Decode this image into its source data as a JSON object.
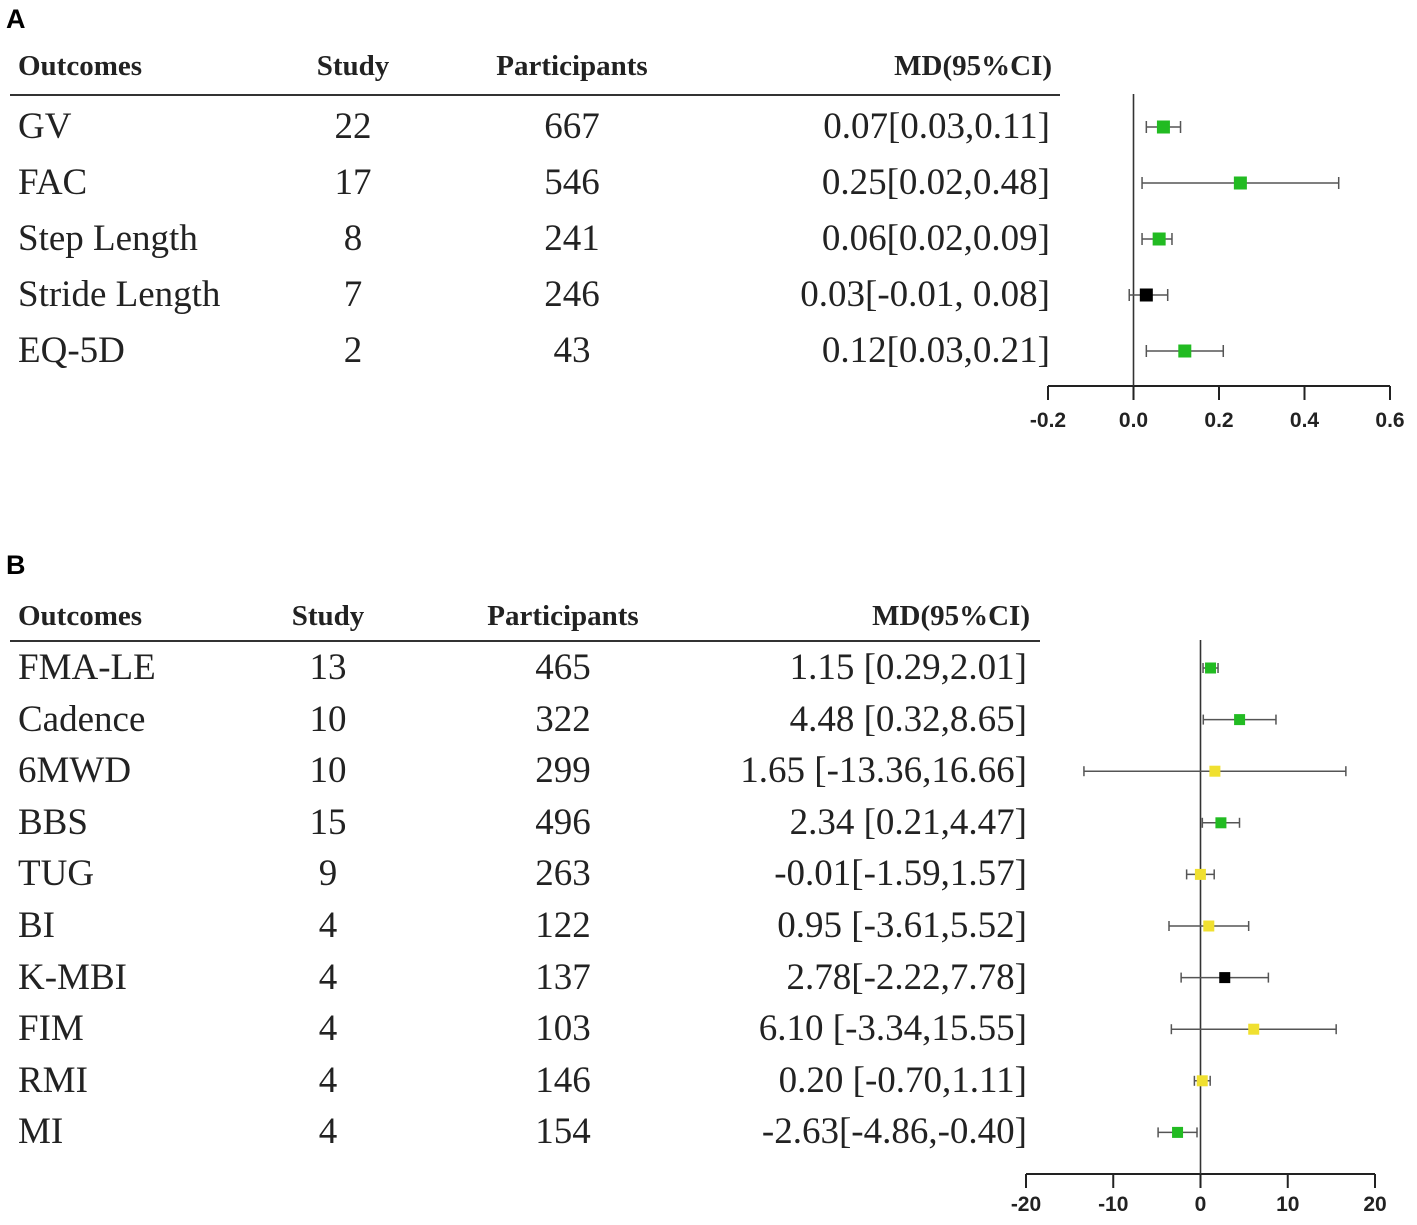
{
  "chart_data": [
    {
      "type": "forest",
      "panel": "A",
      "columns": [
        "Outcomes",
        "Study",
        "Participants",
        "MD(95%CI)"
      ],
      "rows": [
        {
          "outcome": "GV",
          "study": "22",
          "participants": "667",
          "ci_text": "0.07[0.03,0.11]",
          "md": 0.07,
          "lo": 0.03,
          "hi": 0.11,
          "color": "#22bb22"
        },
        {
          "outcome": "FAC",
          "study": "17",
          "participants": "546",
          "ci_text": "0.25[0.02,0.48]",
          "md": 0.25,
          "lo": 0.02,
          "hi": 0.48,
          "color": "#22bb22"
        },
        {
          "outcome": "Step Length",
          "study": "8",
          "participants": "241",
          "ci_text": "0.06[0.02,0.09]",
          "md": 0.06,
          "lo": 0.02,
          "hi": 0.09,
          "color": "#22bb22"
        },
        {
          "outcome": "Stride Length",
          "study": "7",
          "participants": "246",
          "ci_text": "0.03[-0.01, 0.08]",
          "md": 0.03,
          "lo": -0.01,
          "hi": 0.08,
          "color": "#000000"
        },
        {
          "outcome": "EQ-5D",
          "study": "2",
          "participants": "43",
          "ci_text": "0.12[0.03,0.21]",
          "md": 0.12,
          "lo": 0.03,
          "hi": 0.21,
          "color": "#22bb22"
        }
      ],
      "xlim": [
        -0.2,
        0.6
      ],
      "ticks": [
        -0.2,
        0.0,
        0.2,
        0.4,
        0.6
      ],
      "tick_labels": [
        "-0.2",
        "0.0",
        "0.2",
        "0.4",
        "0.6"
      ],
      "reference_line": 0
    },
    {
      "type": "forest",
      "panel": "B",
      "columns": [
        "Outcomes",
        "Study",
        "Participants",
        "MD(95%CI)"
      ],
      "rows": [
        {
          "outcome": "FMA-LE",
          "study": "13",
          "participants": "465",
          "ci_text": "1.15 [0.29,2.01]",
          "md": 1.15,
          "lo": 0.29,
          "hi": 2.01,
          "color": "#22bb22"
        },
        {
          "outcome": "Cadence",
          "study": "10",
          "participants": "322",
          "ci_text": "4.48 [0.32,8.65]",
          "md": 4.48,
          "lo": 0.32,
          "hi": 8.65,
          "color": "#22bb22"
        },
        {
          "outcome": "6MWD",
          "study": "10",
          "participants": "299",
          "ci_text": "1.65 [-13.36,16.66]",
          "md": 1.65,
          "lo": -13.36,
          "hi": 16.66,
          "color": "#f0e030"
        },
        {
          "outcome": "BBS",
          "study": "15",
          "participants": "496",
          "ci_text": "2.34 [0.21,4.47]",
          "md": 2.34,
          "lo": 0.21,
          "hi": 4.47,
          "color": "#22bb22"
        },
        {
          "outcome": "TUG",
          "study": "9",
          "participants": "263",
          "ci_text": "-0.01[-1.59,1.57]",
          "md": -0.01,
          "lo": -1.59,
          "hi": 1.57,
          "color": "#f0e030"
        },
        {
          "outcome": "BI",
          "study": "4",
          "participants": "122",
          "ci_text": "0.95 [-3.61,5.52]",
          "md": 0.95,
          "lo": -3.61,
          "hi": 5.52,
          "color": "#f0e030"
        },
        {
          "outcome": "K-MBI",
          "study": "4",
          "participants": "137",
          "ci_text": "2.78[-2.22,7.78]",
          "md": 2.78,
          "lo": -2.22,
          "hi": 7.78,
          "color": "#000000"
        },
        {
          "outcome": "FIM",
          "study": "4",
          "participants": "103",
          "ci_text": "6.10 [-3.34,15.55]",
          "md": 6.1,
          "lo": -3.34,
          "hi": 15.55,
          "color": "#f0e030"
        },
        {
          "outcome": "RMI",
          "study": "4",
          "participants": "146",
          "ci_text": "0.20 [-0.70,1.11]",
          "md": 0.2,
          "lo": -0.7,
          "hi": 1.11,
          "color": "#f0e030"
        },
        {
          "outcome": "MI",
          "study": "4",
          "participants": "154",
          "ci_text": "-2.63[-4.86,-0.40]",
          "md": -2.63,
          "lo": -4.86,
          "hi": -0.4,
          "color": "#22bb22"
        }
      ],
      "xlim": [
        -20,
        20
      ],
      "ticks": [
        -20,
        -10,
        0,
        10,
        20
      ],
      "tick_labels": [
        "-20",
        "-10",
        "0",
        "10",
        "20"
      ],
      "reference_line": 0
    }
  ]
}
